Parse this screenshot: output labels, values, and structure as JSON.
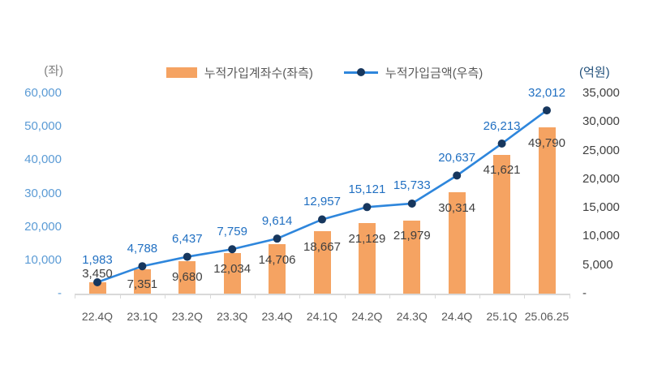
{
  "legend": {
    "bar_label": "누적가입계좌수(좌측)",
    "line_label": "누적가입금액(우측)"
  },
  "axes": {
    "left_unit": "(좌)",
    "right_unit": "(억원)"
  },
  "colors": {
    "bar": "#F5A362",
    "line": "#2E86DC",
    "marker": "#17375E",
    "bar_label": "#404040",
    "line_label": "#2170C2",
    "left_tick": "#5B9BD5",
    "right_tick": "#404040",
    "x_label": "#595959",
    "axis_line": "#D9D9D9",
    "left_unit": "#7F7F7F",
    "right_unit": "#1F4E79"
  },
  "chart_data": {
    "type": "bar+line combo",
    "title": "",
    "categories": [
      "22.4Q",
      "23.1Q",
      "23.2Q",
      "23.3Q",
      "23.4Q",
      "24.1Q",
      "24.2Q",
      "24.3Q",
      "24.4Q",
      "25.1Q",
      "25.06.25"
    ],
    "series": [
      {
        "name": "누적가입계좌수(좌측)",
        "type": "bar",
        "axis": "left",
        "values": [
          3450,
          7351,
          9680,
          12034,
          14706,
          18667,
          21129,
          21979,
          30314,
          41621,
          49790
        ]
      },
      {
        "name": "누적가입금액(우측)",
        "type": "line",
        "axis": "right",
        "values": [
          1983,
          4788,
          6437,
          7759,
          9614,
          12957,
          15121,
          15733,
          20637,
          26213,
          32012
        ]
      }
    ],
    "left_axis": {
      "unit": "(좌)",
      "max": 60000,
      "min": 0,
      "tick_step": 10000,
      "tick_labels": [
        "60,000",
        "50,000",
        "40,000",
        "30,000",
        "20,000",
        "10,000",
        "-"
      ]
    },
    "right_axis": {
      "unit": "(억원)",
      "max": 35000,
      "min": 0,
      "tick_step": 5000,
      "tick_labels": [
        "35,000",
        "30,000",
        "25,000",
        "20,000",
        "15,000",
        "10,000",
        "5,000",
        "-"
      ]
    },
    "legend_position": "top",
    "grid": false,
    "data_labels": true
  }
}
